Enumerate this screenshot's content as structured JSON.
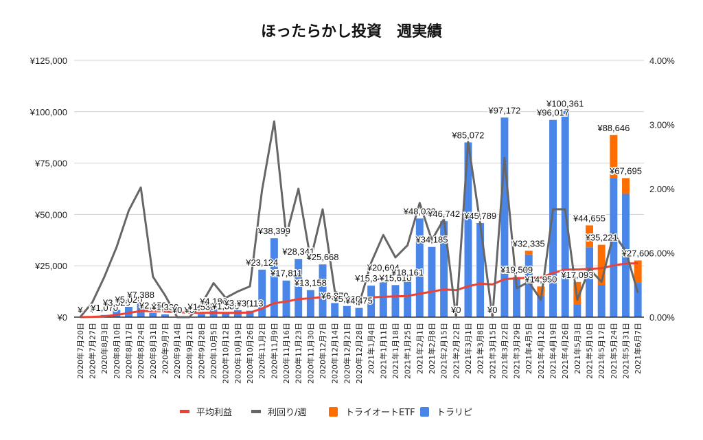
{
  "chart_data": {
    "type": "bar",
    "title": "ほったらかし投資　週実績",
    "stacked": true,
    "categories": [
      "2020年7月20日",
      "2020年7月27日",
      "2020年8月3日",
      "2020年8月10日",
      "2020年8月17日",
      "2020年8月24日",
      "2020年8月31日",
      "2020年9月7日",
      "2020年9月14日",
      "2020年9月21日",
      "2020年9月28日",
      "2020年10月5日",
      "2020年10月12日",
      "2020年10月19日",
      "2020年10月26日",
      "2020年11月2日",
      "2020年11月9日",
      "2020年11月16日",
      "2020年11月23日",
      "2020年11月30日",
      "2020年12月7日",
      "2020年12月14日",
      "2020年12月21日",
      "2020年12月28日",
      "2021年1月4日",
      "2021年1月11日",
      "2021年1月18日",
      "2021年1月25日",
      "2021年2月1日",
      "2021年2月8日",
      "2021年2月15日",
      "2021年2月22日",
      "2021年3月1日",
      "2021年3月8日",
      "2021年3月15日",
      "2021年3月22日",
      "2021年3月29日",
      "2021年4月5日",
      "2021年4月12日",
      "2021年4月19日",
      "2021年4月26日",
      "2021年5月3日",
      "2021年5月10日",
      "2021年5月17日",
      "2021年5月24日",
      "2021年5月31日",
      "2021年6月7日"
    ],
    "series": [
      {
        "name": "トラリピ",
        "kind": "bar",
        "axis": "left",
        "color": "#4a86e8",
        "values": [
          0,
          150,
          1070,
          3520,
          5020,
          7388,
          2150,
          1330,
          0,
          0,
          1530,
          4180,
          1880,
          3350,
          3113,
          23124,
          38399,
          17811,
          28341,
          13158,
          25668,
          6870,
          5420,
          4475,
          15340,
          20604,
          15610,
          18161,
          48022,
          34185,
          46742,
          0,
          85072,
          45789,
          0,
          97172,
          19509,
          30500,
          10500,
          96017,
          100361,
          6300,
          34000,
          15700,
          67695,
          60000,
          16700
        ]
      },
      {
        "name": "トライオートETF",
        "kind": "bar",
        "axis": "left",
        "color": "#ff6d01",
        "values": [
          0,
          0,
          0,
          0,
          0,
          0,
          0,
          0,
          0,
          0,
          0,
          0,
          0,
          0,
          0,
          0,
          0,
          0,
          0,
          0,
          0,
          0,
          0,
          0,
          0,
          0,
          0,
          0,
          0,
          0,
          0,
          0,
          0,
          0,
          0,
          0,
          0,
          1835,
          4450,
          0,
          0,
          10793,
          10655,
          19521,
          20951,
          7695,
          10906
        ]
      },
      {
        "name": "平均利益",
        "kind": "line",
        "axis": "left",
        "color": "#ea4335",
        "values": [
          0,
          120,
          400,
          1100,
          2000,
          3000,
          2900,
          2700,
          2400,
          2200,
          2100,
          2150,
          2100,
          2150,
          2200,
          4200,
          6800,
          7600,
          8800,
          9200,
          9800,
          9700,
          9500,
          9300,
          9600,
          9900,
          10100,
          10300,
          11400,
          12400,
          13500,
          13100,
          15000,
          16300,
          15900,
          18500,
          18900,
          19200,
          19300,
          21500,
          23200,
          23200,
          23500,
          23800,
          25200,
          26100,
          26200
        ]
      },
      {
        "name": "利回り/週",
        "kind": "line",
        "axis": "right",
        "color": "#666666",
        "values": [
          0.0,
          0.23,
          0.63,
          1.09,
          1.66,
          2.02,
          0.63,
          0.34,
          0.0,
          0.0,
          0.2,
          0.53,
          0.3,
          0.4,
          0.48,
          1.98,
          3.05,
          1.27,
          2.0,
          0.9,
          1.68,
          0.4,
          0.3,
          0.2,
          0.85,
          1.28,
          0.93,
          1.12,
          1.78,
          1.2,
          1.53,
          0.0,
          2.73,
          1.45,
          0.0,
          2.48,
          0.45,
          0.55,
          0.27,
          1.68,
          1.68,
          0.27,
          0.75,
          0.55,
          1.3,
          1.03,
          0.38
        ]
      }
    ],
    "data_labels": [
      "¥",
      "¥",
      "¥1,070",
      "¥3,520",
      "¥5,020",
      "¥7,388",
      "¥2,150",
      "¥1,330",
      "¥0",
      "¥0",
      "¥1,530",
      "¥4,180",
      "¥1,880",
      "¥3,350",
      "¥3,113",
      "¥23,124",
      "¥38,399",
      "¥17,811",
      "¥28,341",
      "¥13,158",
      "¥25,668",
      "¥6,870",
      "¥5,420",
      "¥4,475",
      "¥15,340",
      "¥20,604",
      "¥15,610",
      "¥18,161",
      "¥48,022",
      "¥34,185",
      "¥46,742",
      "¥0",
      "¥85,072",
      "¥45,789",
      "¥0",
      "¥97,172",
      "¥19,509",
      "¥32,335",
      "¥14,950",
      "¥96,017",
      "¥100,361",
      "¥17,093",
      "¥44,655",
      "¥35,221",
      "¥88,646",
      "¥67,695",
      "¥27,606"
    ],
    "ylim": [
      0,
      125000
    ],
    "y2lim": [
      0,
      4.0
    ],
    "yticks": [
      "¥0",
      "¥25,000",
      "¥50,000",
      "¥75,000",
      "¥100,000",
      "¥125,000"
    ],
    "y2ticks": [
      "0.00%",
      "1.00%",
      "2.00%",
      "3.00%",
      "4.00%"
    ],
    "grid": true,
    "legend_position": "bottom",
    "legend": [
      "平均利益",
      "利回り/週",
      "トライオートETF",
      "トラリピ"
    ]
  }
}
